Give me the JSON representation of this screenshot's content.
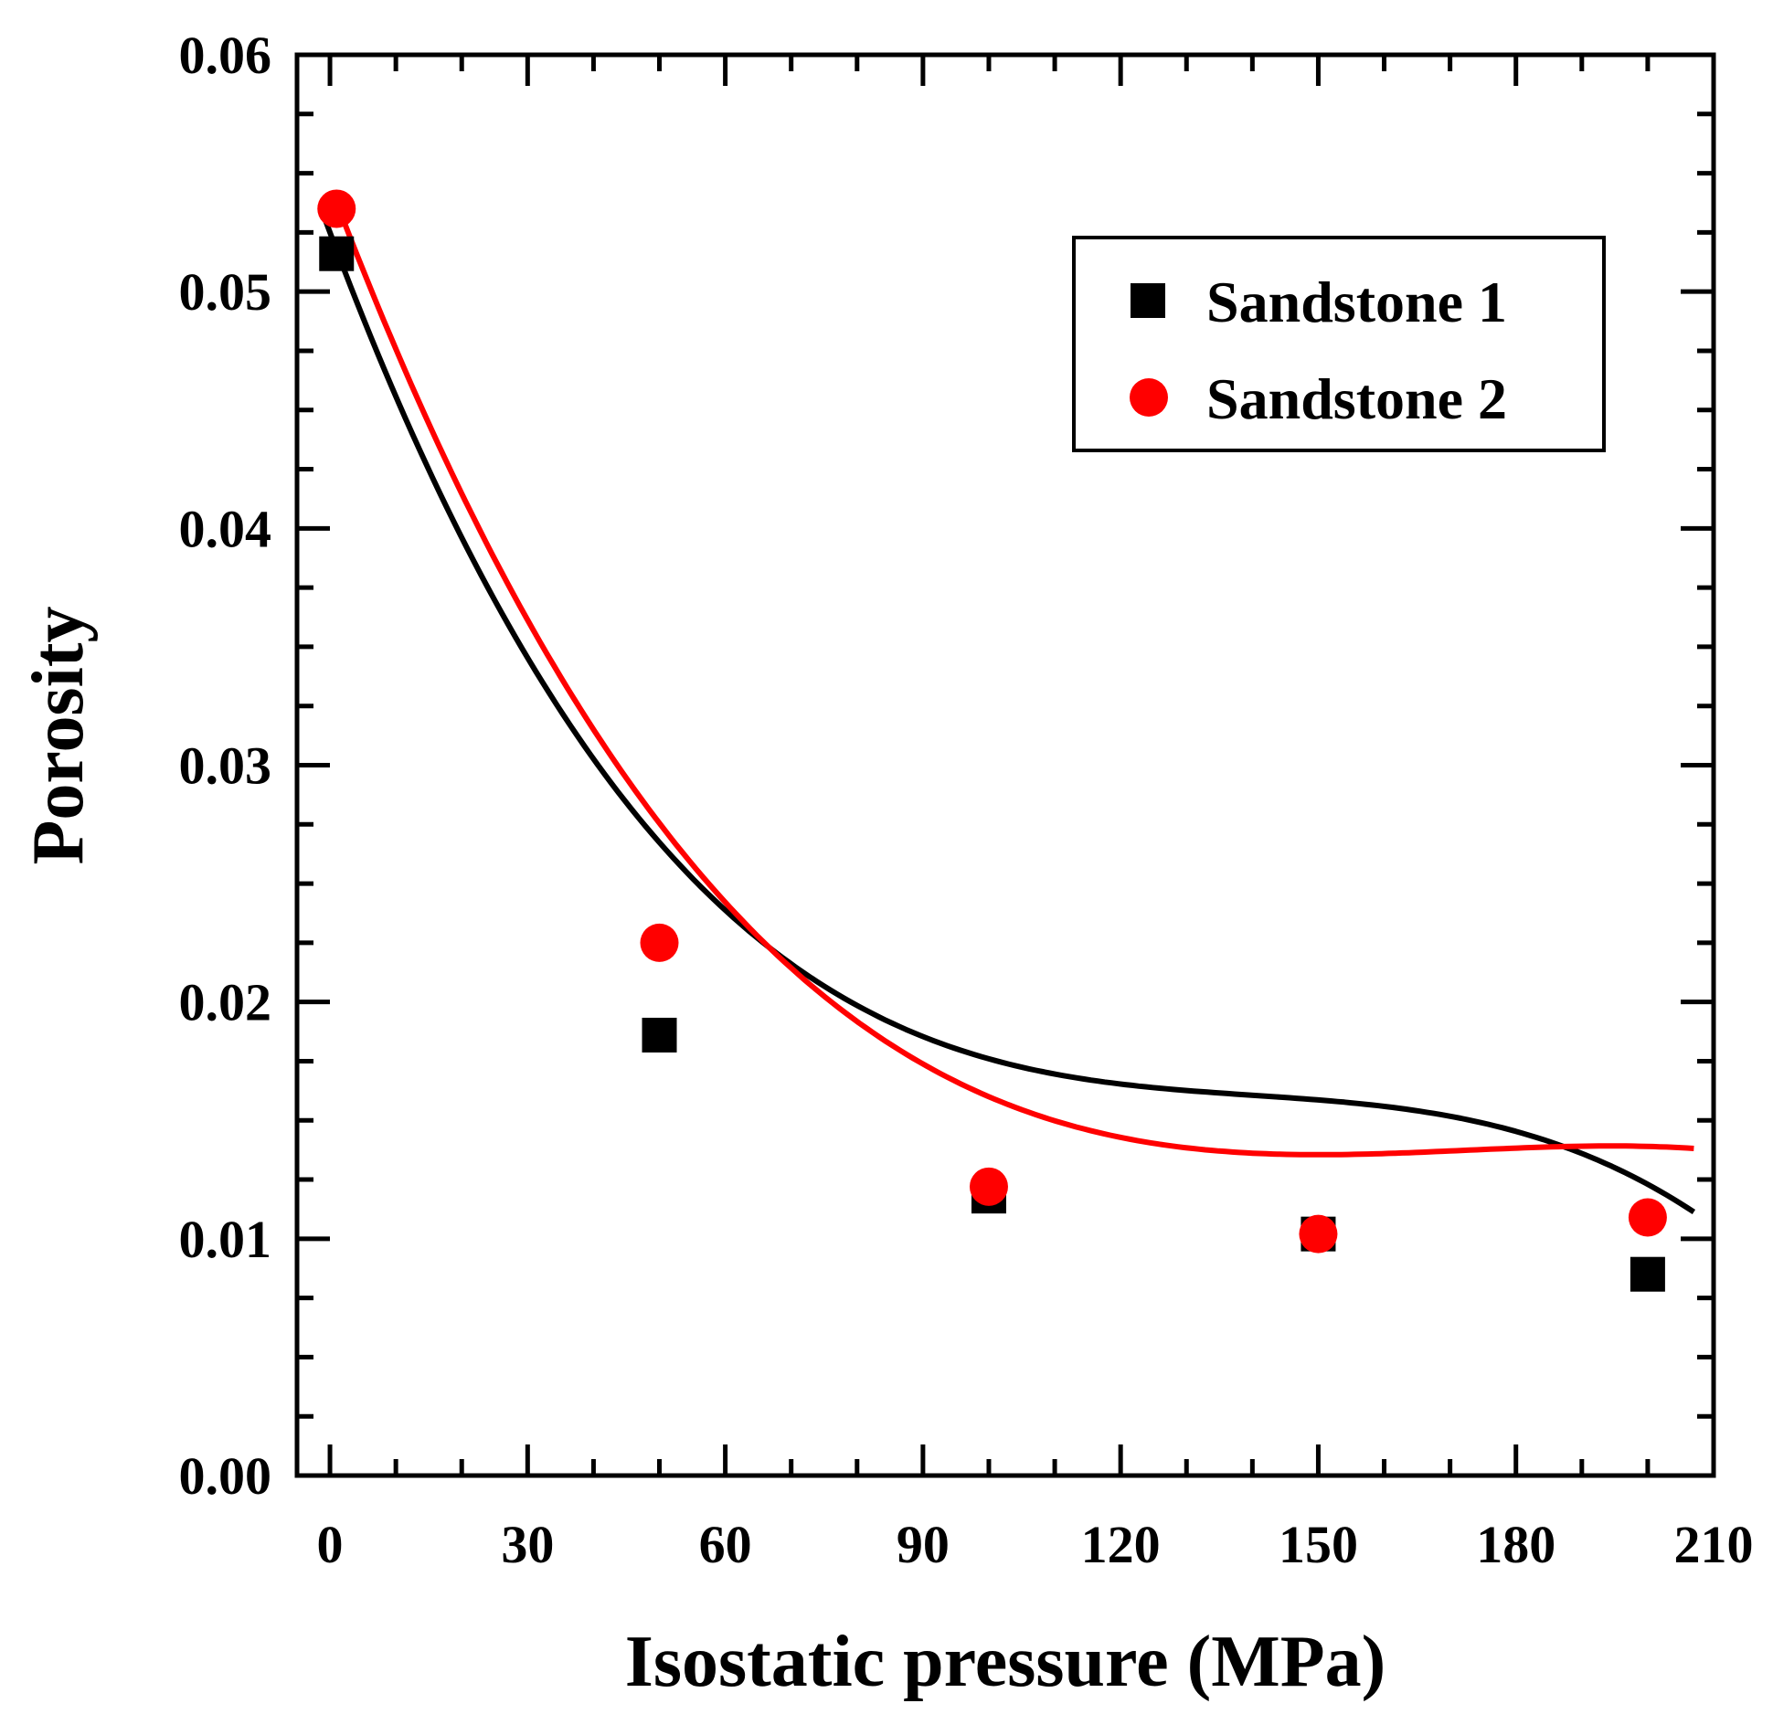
{
  "chart_data": {
    "type": "scatter",
    "title": "",
    "xlabel": "Isostatic pressure (MPa)",
    "ylabel": "Porosity",
    "xlim": [
      -5,
      210
    ],
    "ylim": [
      0,
      0.06
    ],
    "x_ticks": [
      0,
      30,
      60,
      90,
      120,
      150,
      180,
      210
    ],
    "x_tick_labels": [
      "0",
      "30",
      "60",
      "90",
      "120",
      "150",
      "180",
      "210"
    ],
    "y_ticks": [
      0,
      0.01,
      0.02,
      0.03,
      0.04,
      0.05,
      0.06
    ],
    "y_tick_labels": [
      "0.00",
      "0.01",
      "0.02",
      "0.03",
      "0.04",
      "0.05",
      "0.06"
    ],
    "grid": false,
    "legend_position": "top-right",
    "series": [
      {
        "name": "Sandstone 1",
        "marker": "square",
        "color": "#000000",
        "x": [
          1,
          50,
          100,
          150,
          200
        ],
        "y": [
          0.0516,
          0.0186,
          0.0118,
          0.0102,
          0.0085
        ],
        "fit": {
          "kind": "polynomial",
          "x_range": [
            -1,
            207
          ],
          "coefficients": [
            0.0525,
            -0.000743,
            5.17e-06,
            -1.23e-08
          ]
        }
      },
      {
        "name": "Sandstone 2",
        "marker": "circle",
        "color": "#ff0000",
        "x": [
          1,
          50,
          100,
          150,
          200
        ],
        "y": [
          0.0535,
          0.0225,
          0.0122,
          0.0102,
          0.0109
        ],
        "fit": {
          "kind": "polynomial",
          "x_range": [
            1,
            207
          ],
          "coefficients": [
            0.0545,
            -0.000735,
            4.34e-06,
            -8.4e-09
          ]
        }
      }
    ]
  }
}
